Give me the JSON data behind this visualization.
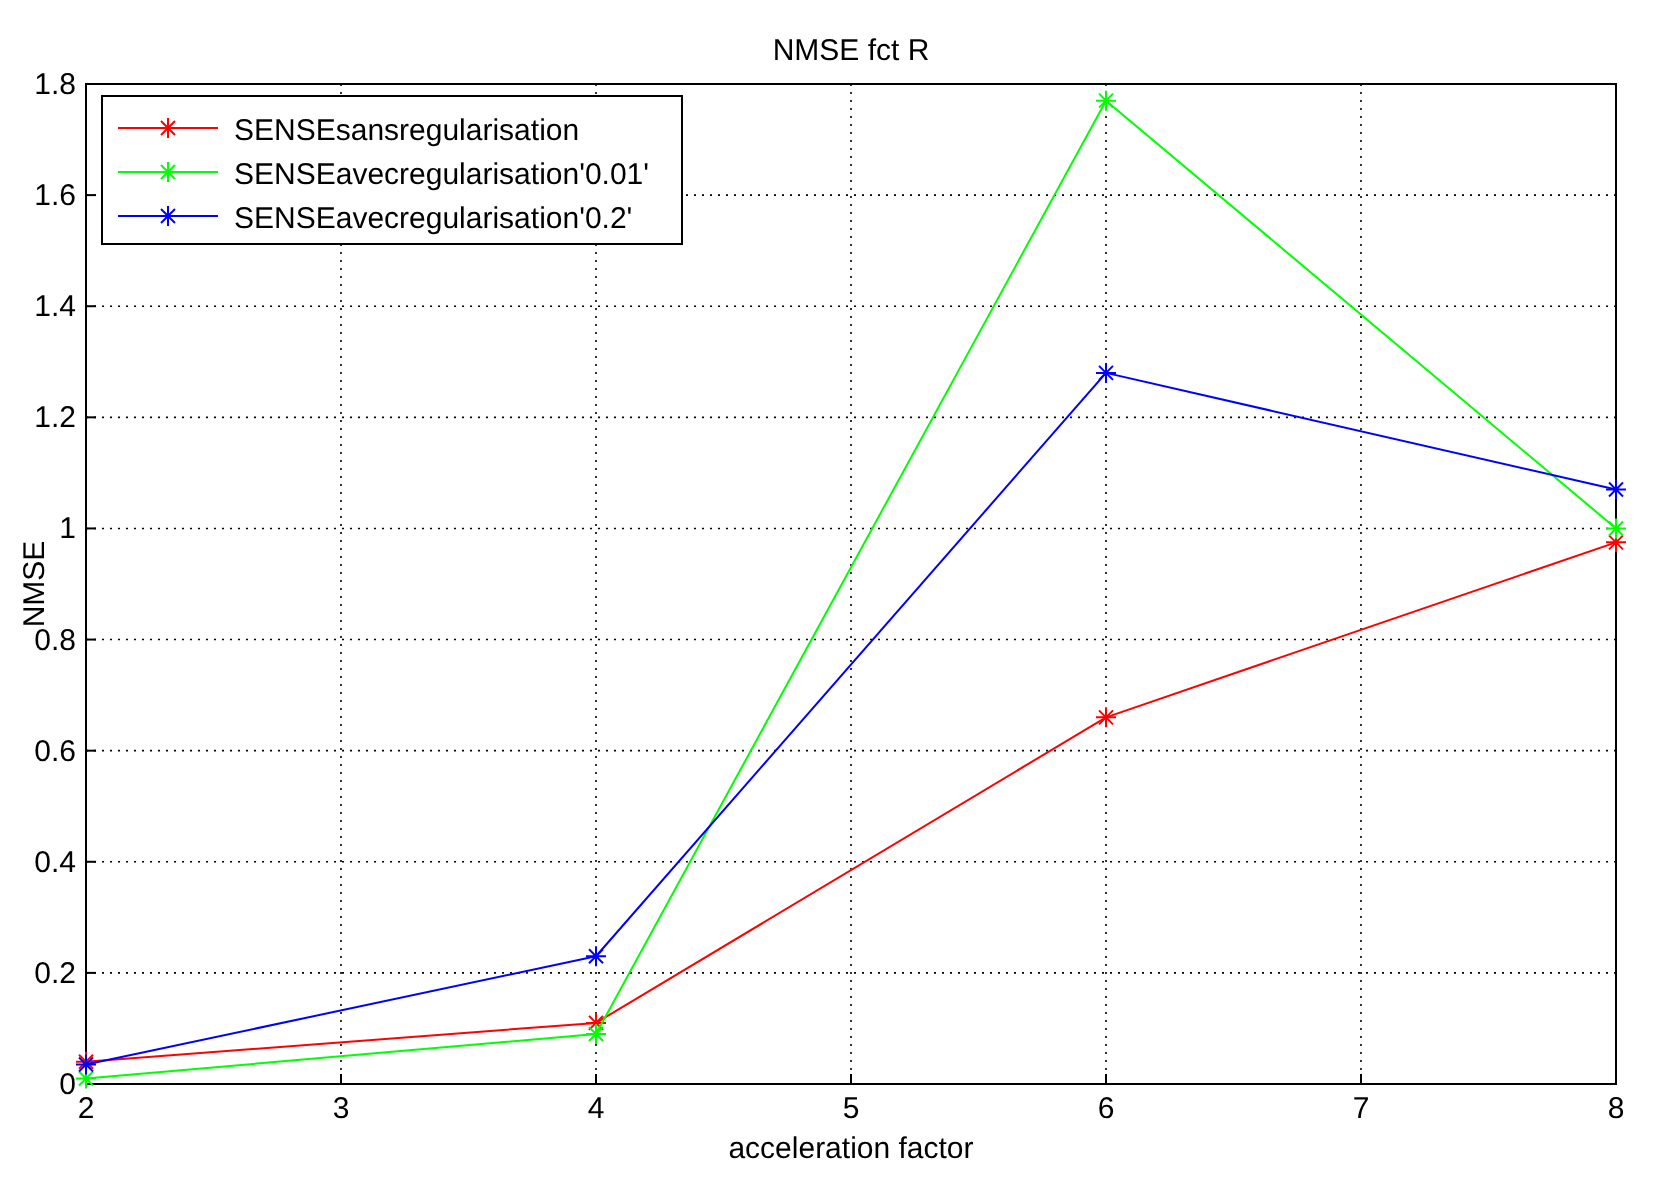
{
  "chart_data": {
    "type": "line",
    "title": "NMSE fct R",
    "xlabel": "acceleration factor",
    "ylabel": "NMSE",
    "x": [
      2,
      4,
      6,
      8
    ],
    "xlim": [
      2,
      8
    ],
    "xticks": [
      2,
      3,
      4,
      5,
      6,
      7,
      8
    ],
    "ylim": [
      0,
      1.8
    ],
    "yticks": [
      0,
      0.2,
      0.4,
      0.6,
      0.8,
      1,
      1.2,
      1.4,
      1.6,
      1.8
    ],
    "grid": true,
    "legend": "top left",
    "marker": "cross",
    "line_style": "solid",
    "series": [
      {
        "name": "SENSEsansregularisation",
        "color": "#ff0000",
        "values": [
          0.04,
          0.11,
          0.66,
          0.975
        ]
      },
      {
        "name": "SENSEavecregularisation'0.01'",
        "color": "#00ff00",
        "values": [
          0.01,
          0.09,
          1.77,
          1.0
        ]
      },
      {
        "name": "SENSEavecregularisation'0.2'",
        "color": "#0000ff",
        "values": [
          0.035,
          0.23,
          1.28,
          1.07
        ]
      }
    ]
  }
}
